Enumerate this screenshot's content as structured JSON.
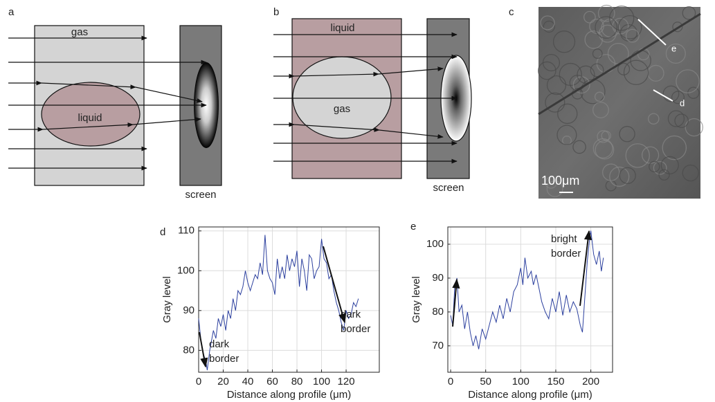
{
  "panel_a": {
    "label": "a",
    "outer": "gas",
    "inner": "liquid",
    "screen": "screen"
  },
  "panel_b": {
    "label": "b",
    "outer": "liquid",
    "inner": "gas",
    "screen": "screen"
  },
  "panel_c": {
    "label": "c",
    "marker_e": "e",
    "marker_d": "d",
    "scale_bar": "100μm"
  },
  "chart_data": [
    {
      "type": "line",
      "panel_label": "d",
      "xlabel": "Distance along profile (μm)",
      "ylabel": "Gray level",
      "x": [
        0,
        2,
        4,
        6,
        7,
        9,
        12,
        14,
        16,
        18,
        20,
        22,
        24,
        26,
        28,
        30,
        32,
        34,
        36,
        38,
        40,
        42,
        44,
        46,
        48,
        50,
        52,
        54,
        56,
        58,
        60,
        62,
        64,
        66,
        68,
        70,
        72,
        74,
        76,
        78,
        80,
        82,
        84,
        86,
        88,
        90,
        92,
        94,
        96,
        98,
        100,
        102,
        104,
        106,
        108,
        110,
        112,
        114,
        116,
        118,
        120,
        122,
        124,
        126,
        128,
        130
      ],
      "values": [
        88,
        82,
        79,
        77,
        75,
        80,
        85,
        83,
        88,
        86,
        89,
        85,
        90,
        88,
        93,
        90,
        95,
        94,
        96,
        100,
        97,
        95,
        97,
        99,
        98,
        102,
        99,
        109,
        100,
        98,
        97,
        94,
        103,
        98,
        101,
        98,
        104,
        100,
        103,
        101,
        105,
        96,
        103,
        100,
        95,
        104,
        103,
        98,
        100,
        101,
        108,
        103,
        102,
        98,
        99,
        95,
        92,
        90,
        87,
        85,
        90,
        88,
        89,
        92,
        91,
        93
      ],
      "color": "#2b3f9e",
      "xlim": [
        0,
        147
      ],
      "ylim": [
        74.5,
        111
      ],
      "xticks": [
        0,
        20,
        40,
        60,
        80,
        100,
        120
      ],
      "yticks": [
        80,
        90,
        100,
        110
      ],
      "grid": true,
      "annotations": [
        {
          "lines": [
            "dark",
            "border"
          ]
        },
        {
          "lines": [
            "dark",
            "border"
          ]
        }
      ]
    },
    {
      "type": "line",
      "panel_label": "e",
      "xlabel": "Distance along profile (μm)",
      "ylabel": "Gray level",
      "x": [
        0,
        3,
        6,
        9,
        12,
        16,
        20,
        24,
        28,
        32,
        36,
        40,
        45,
        50,
        55,
        60,
        65,
        70,
        75,
        80,
        85,
        90,
        95,
        100,
        103,
        106,
        110,
        115,
        118,
        122,
        126,
        130,
        135,
        140,
        145,
        150,
        155,
        160,
        165,
        170,
        175,
        180,
        185,
        188,
        192,
        195,
        198,
        200,
        204,
        208,
        212,
        215,
        218
      ],
      "values": [
        79,
        76,
        88,
        90,
        80,
        82,
        75,
        80,
        74,
        70,
        73,
        69,
        75,
        72,
        76,
        80,
        77,
        82,
        78,
        84,
        80,
        86,
        88,
        93,
        88,
        96,
        90,
        92,
        88,
        91,
        87,
        83,
        80,
        78,
        84,
        80,
        86,
        79,
        85,
        80,
        83,
        81,
        76,
        74,
        86,
        95,
        101,
        104,
        97,
        94,
        98,
        92,
        96
      ],
      "color": "#2b3f9e",
      "xlim": [
        -4,
        231
      ],
      "ylim": [
        62.2,
        105.1
      ],
      "xticks": [
        0,
        50,
        100,
        150,
        200
      ],
      "yticks": [
        70,
        80,
        90,
        100
      ],
      "grid": true,
      "annotations": [
        {
          "lines": [
            "bright",
            "border"
          ]
        }
      ]
    }
  ]
}
